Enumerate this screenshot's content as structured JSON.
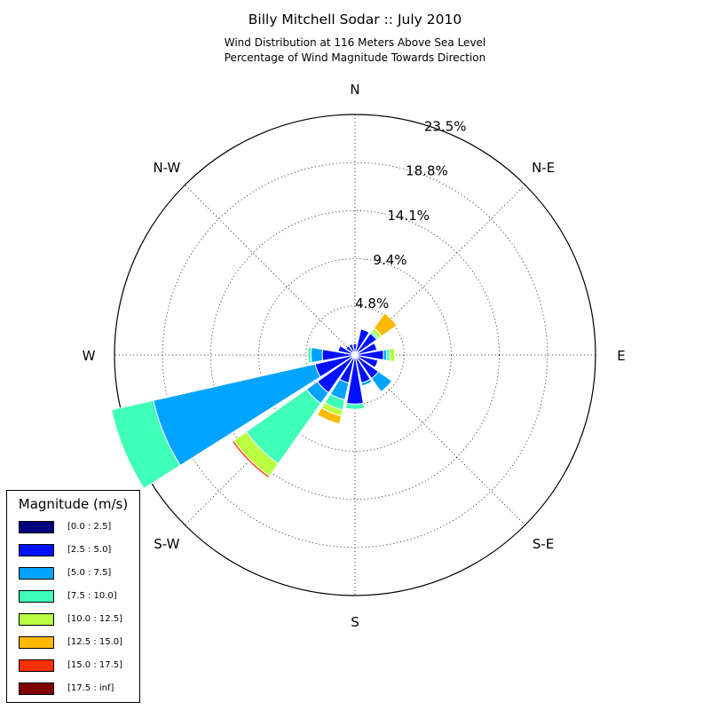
{
  "title": "Billy Mitchell Sodar :: July 2010",
  "subtitle_line1": "Wind Distribution at 116 Meters Above Sea Level",
  "subtitle_line2": "Percentage of Wind Magnitude Towards Direction",
  "chart_data": {
    "type": "windrose",
    "directions": [
      "N",
      "NNE",
      "NE",
      "ENE",
      "E",
      "ESE",
      "SE",
      "SSE",
      "S",
      "SSW",
      "SW",
      "WSW",
      "W",
      "WNW",
      "NW",
      "NNW"
    ],
    "compass_labels": [
      "N",
      "N-E",
      "E",
      "S-E",
      "S",
      "S-W",
      "W",
      "N-W"
    ],
    "radial_ticks": [
      4.8,
      9.4,
      14.1,
      18.8,
      23.5
    ],
    "radial_tick_labels": [
      "4.8%",
      "9.4%",
      "14.1%",
      "18.8%",
      "23.5%"
    ],
    "rmax": 23.5,
    "bins": [
      "[0.0 : 2.5]",
      "[2.5 : 5.0]",
      "[5.0 : 7.5]",
      "[7.5 : 10.0]",
      "[10.0 : 12.5]",
      "[12.5 : 15.0]",
      "[15.0 : 17.5]",
      "[17.5 : inf]"
    ],
    "colors": [
      "#00007f",
      "#0010ff",
      "#00a4ff",
      "#40ffb7",
      "#b7ff40",
      "#ffb900",
      "#ff3000",
      "#7f0000"
    ],
    "values_by_direction": [
      [
        0.3,
        0.8,
        0,
        0,
        0,
        0,
        0,
        0
      ],
      [
        0.3,
        2.3,
        0,
        0,
        0,
        0,
        0,
        0
      ],
      [
        0.4,
        2.2,
        0,
        0.2,
        0.4,
        1.8,
        0,
        0
      ],
      [
        0.3,
        1.9,
        0,
        0,
        0,
        0,
        0,
        0
      ],
      [
        0.3,
        2.5,
        0.3,
        0.3,
        0.5,
        0,
        0,
        0
      ],
      [
        0.3,
        2.0,
        0,
        0,
        0,
        0,
        0,
        0
      ],
      [
        0.3,
        2.5,
        1.6,
        0,
        0,
        0,
        0,
        0
      ],
      [
        0.3,
        2.5,
        0.3,
        0,
        0,
        0,
        0,
        0
      ],
      [
        0.3,
        4.5,
        0,
        0.5,
        0,
        0,
        0,
        0
      ],
      [
        0.3,
        2.5,
        1.7,
        1.0,
        0.6,
        0.8,
        0,
        0
      ],
      [
        0.3,
        4.2,
        1.3,
        7.2,
        1.5,
        0,
        0.2,
        0
      ],
      [
        0.3,
        3.7,
        16.2,
        4.2,
        0,
        0,
        0,
        0
      ],
      [
        0.3,
        2.9,
        1.1,
        0.3,
        0,
        0,
        0,
        0
      ],
      [
        0.3,
        1.4,
        0,
        0,
        0,
        0,
        0,
        0
      ],
      [
        0.3,
        0.8,
        0,
        0,
        0,
        0,
        0,
        0
      ],
      [
        0.3,
        0.8,
        0,
        0,
        0,
        0,
        0,
        0
      ]
    ]
  },
  "legend": {
    "title": "Magnitude (m/s)",
    "items": [
      {
        "label": "[0.0 : 2.5]",
        "color": "#00007f"
      },
      {
        "label": "[2.5 : 5.0]",
        "color": "#0010ff"
      },
      {
        "label": "[5.0 : 7.5]",
        "color": "#00a4ff"
      },
      {
        "label": "[7.5 : 10.0]",
        "color": "#40ffb7"
      },
      {
        "label": "[10.0 : 12.5]",
        "color": "#b7ff40"
      },
      {
        "label": "[12.5 : 15.0]",
        "color": "#ffb900"
      },
      {
        "label": "[15.0 : 17.5]",
        "color": "#ff3000"
      },
      {
        "label": "[17.5 : inf]",
        "color": "#7f0000"
      }
    ]
  }
}
